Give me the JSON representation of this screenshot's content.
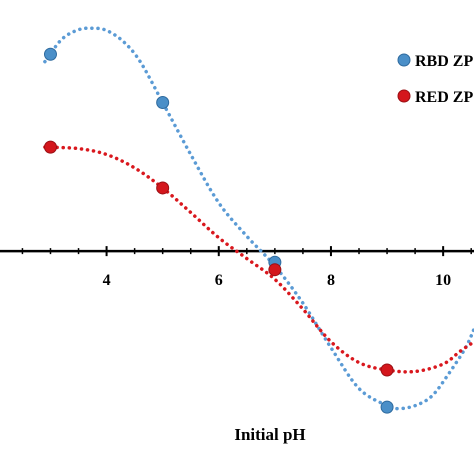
{
  "chart_data": {
    "type": "scatter",
    "title": "",
    "xlabel": "Initial pH",
    "ylabel": "",
    "xlim": [
      2.1,
      10.55
    ],
    "ylim": [
      -3.0,
      3.38
    ],
    "x_ticks": [
      4,
      6,
      8,
      10
    ],
    "grid": false,
    "legend_position": "top-right",
    "series": [
      {
        "name": "RBD ZP",
        "color": "#4a8fc8",
        "line_color": "#5b9bd5",
        "x": [
          3,
          5,
          7,
          9
        ],
        "y": [
          2.65,
          2.0,
          -0.15,
          -2.1
        ],
        "curve_x": [
          2.9,
          3.2,
          3.5,
          3.75,
          4.0,
          4.3,
          4.6,
          5.0,
          5.5,
          6.0,
          6.5,
          7.0,
          7.5,
          8.0,
          8.5,
          9.0,
          9.2,
          9.5,
          9.8,
          10.1,
          10.4,
          10.55
        ],
        "curve_y": [
          2.55,
          2.85,
          2.98,
          3.0,
          2.97,
          2.82,
          2.55,
          2.0,
          1.3,
          0.65,
          0.2,
          -0.2,
          -0.7,
          -1.3,
          -1.85,
          -2.08,
          -2.12,
          -2.08,
          -1.95,
          -1.65,
          -1.3,
          -1.05
        ]
      },
      {
        "name": "RED ZP",
        "color": "#d4161c",
        "line_color": "#d9181e",
        "x": [
          3,
          5,
          7,
          9
        ],
        "y": [
          1.4,
          0.85,
          -0.25,
          -1.6
        ],
        "curve_x": [
          2.9,
          3.5,
          4.0,
          4.5,
          5.0,
          5.5,
          6.0,
          6.5,
          7.0,
          7.5,
          8.0,
          8.5,
          9.0,
          9.5,
          10.0,
          10.3,
          10.55
        ],
        "curve_y": [
          1.4,
          1.38,
          1.3,
          1.12,
          0.85,
          0.52,
          0.18,
          -0.1,
          -0.38,
          -0.78,
          -1.22,
          -1.5,
          -1.6,
          -1.62,
          -1.52,
          -1.35,
          -1.22
        ]
      }
    ]
  }
}
